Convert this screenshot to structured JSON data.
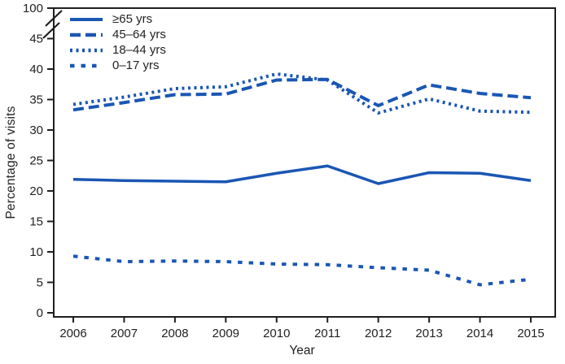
{
  "figure": {
    "background": "#ffffff",
    "frame_color": "#1f1f1f",
    "line_color": "#1A56B4",
    "text_color": "#222222"
  },
  "chart_data": {
    "type": "line",
    "title": "",
    "xlabel": "Year",
    "ylabel": "Percentage of visits",
    "x": [
      2006,
      2007,
      2008,
      2009,
      2010,
      2011,
      2012,
      2013,
      2014,
      2015
    ],
    "y_ticks": [
      0,
      5,
      10,
      15,
      20,
      25,
      30,
      35,
      40,
      45
    ],
    "y_break_top_label": "100",
    "axis_break": true,
    "ylim": [
      0,
      45
    ],
    "grid": false,
    "legend_position": "top-left-inside",
    "series": [
      {
        "id": "65-plus",
        "name": "≥65 yrs",
        "dash": "solid",
        "values": [
          21.9,
          21.7,
          21.6,
          21.5,
          22.9,
          24.1,
          21.2,
          23.0,
          22.9,
          21.7
        ]
      },
      {
        "id": "45-64",
        "name": "45–64 yrs",
        "dash": "long-dash",
        "values": [
          33.3,
          34.5,
          35.8,
          35.9,
          38.2,
          38.3,
          34.0,
          37.4,
          36.0,
          35.3
        ]
      },
      {
        "id": "18-44",
        "name": "18–44 yrs",
        "dash": "dot",
        "values": [
          34.2,
          35.4,
          36.8,
          37.1,
          39.2,
          38.2,
          32.8,
          35.1,
          33.1,
          32.9
        ]
      },
      {
        "id": "0-17",
        "name": "0–17 yrs",
        "dash": "short-dash",
        "values": [
          9.3,
          8.4,
          8.5,
          8.4,
          8.0,
          7.9,
          7.4,
          7.0,
          4.6,
          5.5
        ]
      }
    ]
  }
}
